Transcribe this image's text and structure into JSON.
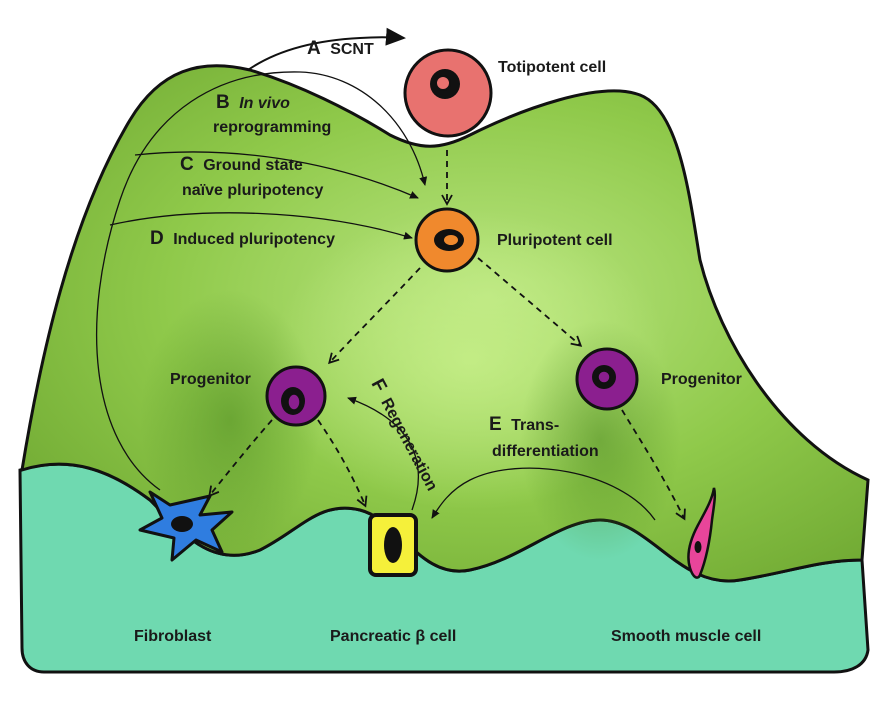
{
  "cells": {
    "totipotent": "Totipotent cell",
    "pluripotent": "Pluripotent cell",
    "progenitor_left": "Progenitor",
    "progenitor_right": "Progenitor",
    "fibroblast": "Fibroblast",
    "pancreatic": "Pancreatic β cell",
    "smooth_muscle": "Smooth muscle cell"
  },
  "routes": {
    "a_letter": "A",
    "a_text": "SCNT",
    "b_letter": "B",
    "b_text_1": "In vivo",
    "b_text_2": "reprogramming",
    "c_letter": "C",
    "c_text_1": "Ground state",
    "c_text_2": "naïve pluripotency",
    "d_letter": "D",
    "d_text": "Induced pluripotency",
    "e_letter": "E",
    "e_text_1": "Trans-",
    "e_text_2": "differentiation",
    "f_letter": "F",
    "f_text": "Regeneration"
  },
  "colors": {
    "landscape_green": "#8cc63f",
    "ground_teal": "#6fd9b0",
    "totipotent": "#e8726f",
    "pluripotent": "#f0892d",
    "progenitor": "#8b1f8f",
    "fibroblast": "#2f7de0",
    "beta_cell": "#f5f03a",
    "smooth_muscle": "#e8459a"
  }
}
